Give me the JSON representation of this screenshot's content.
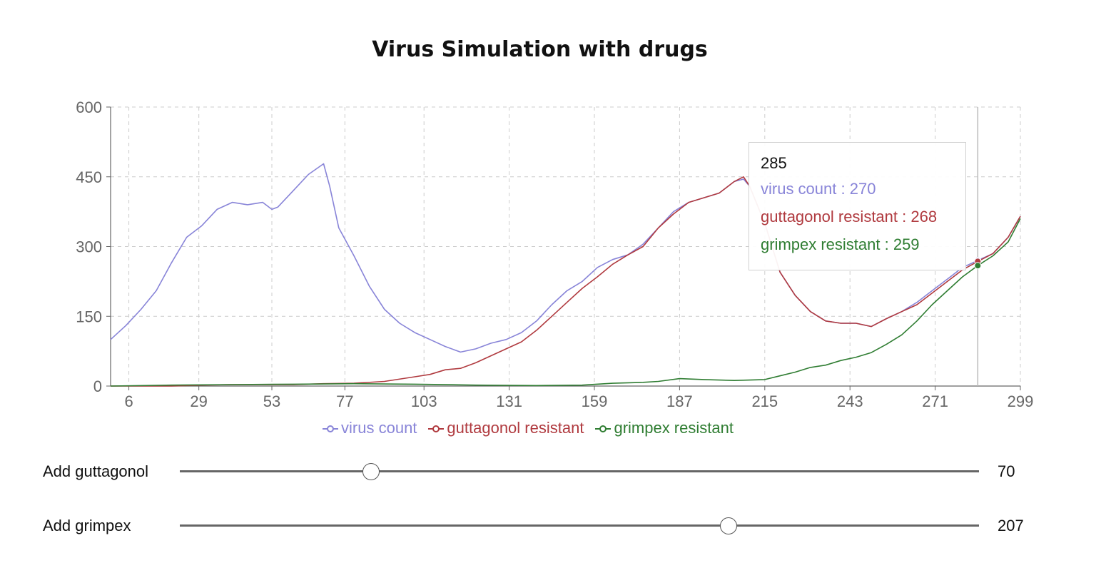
{
  "title": "Virus Simulation with drugs",
  "colors": {
    "virus": "#8884d8",
    "guttagonol": "#b03a3f",
    "grimpex": "#2f7d32",
    "grid": "#cccccc",
    "axis": "#666666",
    "tick_text": "#666666"
  },
  "chart_data": {
    "type": "line",
    "title": "Virus Simulation with drugs",
    "xlabel": "",
    "ylabel": "",
    "xlim": [
      0,
      299
    ],
    "ylim": [
      0,
      600
    ],
    "x_ticks": [
      6,
      29,
      53,
      77,
      103,
      131,
      159,
      187,
      215,
      243,
      271,
      299
    ],
    "y_ticks": [
      0,
      150,
      300,
      450,
      600
    ],
    "grid": true,
    "legend_position": "bottom",
    "cursor_x": 285,
    "series": [
      {
        "name": "virus count",
        "color": "#8884d8",
        "x": [
          0,
          5,
          10,
          15,
          20,
          25,
          30,
          35,
          40,
          45,
          50,
          53,
          55,
          60,
          65,
          70,
          72,
          75,
          80,
          85,
          90,
          95,
          100,
          105,
          110,
          115,
          120,
          125,
          130,
          135,
          140,
          145,
          150,
          155,
          160,
          165,
          170,
          175,
          180,
          185,
          190,
          195,
          200,
          205,
          208,
          210,
          215,
          220,
          225,
          230,
          235,
          240,
          245,
          250,
          255,
          260,
          265,
          270,
          275,
          280,
          285,
          290,
          295,
          299
        ],
        "y": [
          100,
          130,
          165,
          205,
          265,
          320,
          345,
          380,
          395,
          390,
          395,
          380,
          385,
          420,
          455,
          478,
          430,
          340,
          280,
          215,
          165,
          135,
          115,
          100,
          85,
          73,
          80,
          92,
          100,
          115,
          140,
          175,
          205,
          225,
          255,
          272,
          282,
          305,
          340,
          375,
          395,
          405,
          415,
          440,
          445,
          430,
          350,
          245,
          195,
          160,
          140,
          135,
          135,
          128,
          145,
          160,
          180,
          205,
          230,
          255,
          270,
          285,
          320,
          365
        ]
      },
      {
        "name": "guttagonol resistant",
        "color": "#b03a3f",
        "x": [
          0,
          10,
          20,
          30,
          40,
          50,
          60,
          70,
          80,
          90,
          100,
          105,
          110,
          115,
          120,
          125,
          130,
          135,
          140,
          145,
          150,
          155,
          160,
          165,
          170,
          175,
          180,
          185,
          190,
          195,
          200,
          205,
          208,
          210,
          215,
          220,
          225,
          230,
          235,
          240,
          245,
          250,
          255,
          260,
          265,
          270,
          275,
          280,
          285,
          290,
          295,
          299
        ],
        "y": [
          0,
          0,
          0,
          2,
          3,
          3,
          3,
          5,
          6,
          10,
          20,
          25,
          35,
          38,
          50,
          65,
          80,
          95,
          120,
          150,
          180,
          210,
          235,
          262,
          282,
          300,
          340,
          370,
          395,
          405,
          415,
          440,
          450,
          430,
          350,
          245,
          195,
          160,
          140,
          135,
          135,
          128,
          145,
          160,
          175,
          200,
          225,
          250,
          268,
          285,
          320,
          365
        ]
      },
      {
        "name": "grimpex resistant",
        "color": "#2f7d32",
        "x": [
          0,
          20,
          40,
          60,
          80,
          100,
          120,
          140,
          155,
          165,
          175,
          180,
          187,
          195,
          205,
          215,
          220,
          225,
          230,
          235,
          240,
          245,
          250,
          255,
          260,
          265,
          270,
          275,
          280,
          285,
          290,
          295,
          299
        ],
        "y": [
          0,
          2,
          3,
          4,
          5,
          4,
          2,
          1,
          2,
          6,
          8,
          10,
          16,
          14,
          12,
          14,
          22,
          30,
          40,
          45,
          55,
          62,
          72,
          90,
          110,
          140,
          175,
          205,
          235,
          259,
          280,
          310,
          360
        ]
      }
    ]
  },
  "tooltip": {
    "label": "285",
    "rows": [
      {
        "text": "virus count : 270",
        "color": "#8884d8"
      },
      {
        "text": "guttagonol resistant : 268",
        "color": "#b03a3f"
      },
      {
        "text": "grimpex resistant : 259",
        "color": "#2f7d32"
      }
    ]
  },
  "legend": [
    {
      "label": "virus count",
      "color": "#8884d8"
    },
    {
      "label": "guttagonol resistant",
      "color": "#b03a3f"
    },
    {
      "label": "grimpex resistant",
      "color": "#2f7d32"
    }
  ],
  "sliders": [
    {
      "label": "Add guttagonol",
      "value": "70",
      "min": 0,
      "max": 299,
      "fraction": 0.239
    },
    {
      "label": "Add grimpex",
      "value": "207",
      "min": 0,
      "max": 299,
      "fraction": 0.687
    }
  ]
}
